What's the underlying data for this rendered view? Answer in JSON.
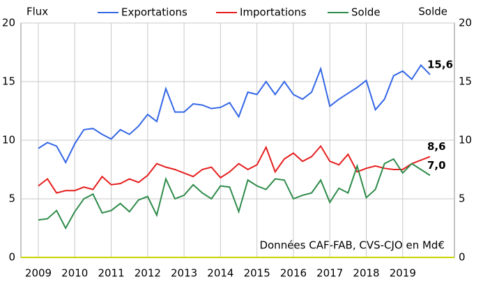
{
  "chart_data": {
    "type": "line",
    "y_label": "Flux",
    "y2_label": "Solde",
    "annotation": "Données CAF-FAB, CVS-CJO en Md€",
    "categories": [
      "2009",
      null,
      null,
      null,
      "2010",
      null,
      null,
      null,
      "2011",
      null,
      null,
      null,
      "2012",
      null,
      null,
      null,
      "2013",
      null,
      null,
      null,
      "2014",
      null,
      null,
      null,
      "2015",
      null,
      null,
      null,
      "2016",
      null,
      null,
      null,
      "2017",
      null,
      null,
      null,
      "2018",
      null,
      null,
      null,
      "2019",
      null,
      null,
      null
    ],
    "series": [
      {
        "name": "Exportations",
        "color": "#3366e6",
        "values": [
          9.3,
          9.8,
          9.5,
          8.1,
          9.7,
          10.9,
          11.0,
          10.5,
          10.1,
          10.9,
          10.5,
          11.2,
          12.2,
          11.6,
          14.4,
          12.4,
          12.4,
          13.1,
          13.0,
          12.7,
          12.8,
          13.2,
          12.0,
          14.1,
          13.9,
          15.0,
          13.9,
          15.0,
          13.9,
          13.5,
          14.1,
          16.1,
          12.9,
          13.5,
          14.0,
          14.5,
          15.1,
          12.6,
          13.5,
          15.5,
          15.9,
          15.2,
          16.4,
          15.6
        ],
        "value_labels": [
          null,
          null,
          null,
          null,
          null,
          null,
          null,
          null,
          null,
          null,
          null,
          null,
          null,
          null,
          null,
          null,
          null,
          null,
          null,
          null,
          null,
          null,
          null,
          null,
          null,
          null,
          null,
          null,
          null,
          null,
          null,
          null,
          null,
          null,
          null,
          null,
          null,
          null,
          null,
          null,
          null,
          null,
          null,
          "15,6"
        ]
      },
      {
        "name": "Importations",
        "color": "#e61e1e",
        "values": [
          6.1,
          6.7,
          5.5,
          5.7,
          5.7,
          6.0,
          5.8,
          6.9,
          6.2,
          6.3,
          6.7,
          6.4,
          7.0,
          8.0,
          7.7,
          7.5,
          7.2,
          6.9,
          7.5,
          7.7,
          6.8,
          7.3,
          8.0,
          7.5,
          7.9,
          9.4,
          7.3,
          8.4,
          8.9,
          8.2,
          8.6,
          9.5,
          8.2,
          7.9,
          8.8,
          7.3,
          7.6,
          7.8,
          7.6,
          7.5,
          7.5,
          8.0,
          8.3,
          8.6
        ],
        "value_labels": [
          null,
          null,
          null,
          null,
          null,
          null,
          null,
          null,
          null,
          null,
          null,
          null,
          null,
          null,
          null,
          null,
          null,
          null,
          null,
          null,
          null,
          null,
          null,
          null,
          null,
          null,
          null,
          null,
          null,
          null,
          null,
          null,
          null,
          null,
          null,
          null,
          null,
          null,
          null,
          null,
          null,
          null,
          null,
          "8,6"
        ]
      },
      {
        "name": "Solde",
        "color": "#2e8b4a",
        "axis": "y2",
        "values": [
          3.2,
          3.3,
          4.0,
          2.5,
          3.9,
          5.0,
          5.4,
          3.8,
          4.0,
          4.6,
          3.9,
          4.9,
          5.2,
          3.6,
          6.7,
          5.0,
          5.3,
          6.2,
          5.5,
          5.0,
          6.1,
          6.0,
          3.9,
          6.6,
          6.1,
          5.8,
          6.7,
          6.6,
          5.0,
          5.3,
          5.5,
          6.6,
          4.7,
          5.9,
          5.5,
          7.8,
          5.1,
          5.8,
          8.0,
          8.4,
          7.2,
          8.0,
          7.5,
          7.0
        ],
        "value_labels": [
          null,
          null,
          null,
          null,
          null,
          null,
          null,
          null,
          null,
          null,
          null,
          null,
          null,
          null,
          null,
          null,
          null,
          null,
          null,
          null,
          null,
          null,
          null,
          null,
          null,
          null,
          null,
          null,
          null,
          null,
          null,
          null,
          null,
          null,
          null,
          null,
          null,
          null,
          null,
          null,
          null,
          null,
          null,
          "7,0"
        ]
      }
    ],
    "ylim": [
      0,
      20
    ],
    "yticks": [
      0,
      5,
      10,
      15,
      20
    ],
    "y2lim": [
      0,
      20
    ],
    "y2ticks": [
      0,
      5,
      10,
      15,
      20
    ],
    "y2_color": "#2e8b4a",
    "grid": true,
    "legend": "top"
  }
}
